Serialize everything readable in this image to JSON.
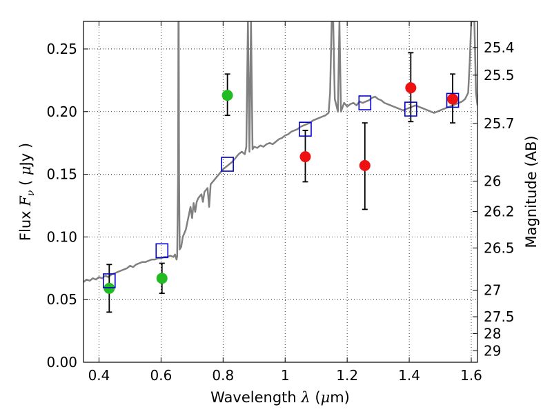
{
  "chart_data": {
    "type": "scatter",
    "xlabel": {
      "prefix": "Wavelength ",
      "symbol": "λ",
      "units_open": " (",
      "unit_mu": "μ",
      "units_close": "m)"
    },
    "ylabel": {
      "prefix": "Flux ",
      "symbol": "F",
      "subscript": "ν",
      "units": " ( ",
      "unit_mu": "μ",
      "units_close": "Jy )"
    },
    "y2label": "Magnitude (AB)",
    "xlim": [
      0.35,
      1.62
    ],
    "ylim": [
      0.0,
      0.272
    ],
    "xticks": [
      {
        "value": 0.4,
        "label": "0.4"
      },
      {
        "value": 0.6,
        "label": "0.6"
      },
      {
        "value": 0.8,
        "label": "0.8"
      },
      {
        "value": 1.0,
        "label": "1"
      },
      {
        "value": 1.2,
        "label": "1.2"
      },
      {
        "value": 1.4,
        "label": "1.4"
      },
      {
        "value": 1.6,
        "label": "1.6"
      }
    ],
    "yticks": [
      {
        "value": 0.0,
        "label": "0.00"
      },
      {
        "value": 0.05,
        "label": "0.05"
      },
      {
        "value": 0.1,
        "label": "0.10"
      },
      {
        "value": 0.15,
        "label": "0.15"
      },
      {
        "value": 0.2,
        "label": "0.20"
      },
      {
        "value": 0.25,
        "label": "0.25"
      }
    ],
    "y2ticks": [
      {
        "value": 25.4,
        "label": "25.4"
      },
      {
        "value": 25.5,
        "label": "25.5"
      },
      {
        "value": 25.7,
        "label": "25.7"
      },
      {
        "value": 26.0,
        "label": "26"
      },
      {
        "value": 26.2,
        "label": "26.2"
      },
      {
        "value": 26.5,
        "label": "26.5"
      },
      {
        "value": 27.0,
        "label": "27"
      },
      {
        "value": 27.5,
        "label": "27.5"
      },
      {
        "value": 28.0,
        "label": "28"
      },
      {
        "value": 29.0,
        "label": "29"
      }
    ],
    "grid": true,
    "colors": {
      "spectrum": "#808080",
      "model": "#0000cc",
      "optical": "#22bb22",
      "nir": "#ee1111",
      "errorbar": "#000000"
    },
    "series": [
      {
        "kind": "spectrum_line",
        "color": "#808080",
        "points": [
          [
            0.35,
            0.064
          ],
          [
            0.36,
            0.066
          ],
          [
            0.37,
            0.065
          ],
          [
            0.38,
            0.067
          ],
          [
            0.39,
            0.066
          ],
          [
            0.4,
            0.068
          ],
          [
            0.41,
            0.067
          ],
          [
            0.42,
            0.069
          ],
          [
            0.43,
            0.068
          ],
          [
            0.44,
            0.07
          ],
          [
            0.45,
            0.071
          ],
          [
            0.46,
            0.072
          ],
          [
            0.47,
            0.073
          ],
          [
            0.48,
            0.074
          ],
          [
            0.49,
            0.075
          ],
          [
            0.5,
            0.077
          ],
          [
            0.51,
            0.076
          ],
          [
            0.52,
            0.078
          ],
          [
            0.53,
            0.079
          ],
          [
            0.54,
            0.08
          ],
          [
            0.55,
            0.08
          ],
          [
            0.56,
            0.081
          ],
          [
            0.57,
            0.082
          ],
          [
            0.58,
            0.082
          ],
          [
            0.59,
            0.083
          ],
          [
            0.6,
            0.083
          ],
          [
            0.61,
            0.084
          ],
          [
            0.62,
            0.084
          ],
          [
            0.63,
            0.085
          ],
          [
            0.64,
            0.084
          ],
          [
            0.645,
            0.086
          ],
          [
            0.65,
            0.082
          ],
          [
            0.652,
            0.085
          ],
          [
            0.655,
            0.15
          ],
          [
            0.656,
            0.272
          ],
          [
            0.657,
            0.272
          ],
          [
            0.658,
            0.15
          ],
          [
            0.66,
            0.09
          ],
          [
            0.665,
            0.092
          ],
          [
            0.67,
            0.1
          ],
          [
            0.68,
            0.106
          ],
          [
            0.685,
            0.112
          ],
          [
            0.69,
            0.118
          ],
          [
            0.695,
            0.124
          ],
          [
            0.7,
            0.115
          ],
          [
            0.705,
            0.127
          ],
          [
            0.71,
            0.12
          ],
          [
            0.715,
            0.128
          ],
          [
            0.72,
            0.131
          ],
          [
            0.73,
            0.134
          ],
          [
            0.735,
            0.128
          ],
          [
            0.74,
            0.136
          ],
          [
            0.75,
            0.139
          ],
          [
            0.755,
            0.124
          ],
          [
            0.76,
            0.142
          ],
          [
            0.77,
            0.145
          ],
          [
            0.78,
            0.148
          ],
          [
            0.79,
            0.151
          ],
          [
            0.8,
            0.154
          ],
          [
            0.81,
            0.156
          ],
          [
            0.82,
            0.158
          ],
          [
            0.83,
            0.16
          ],
          [
            0.84,
            0.163
          ],
          [
            0.85,
            0.166
          ],
          [
            0.86,
            0.168
          ],
          [
            0.87,
            0.166
          ],
          [
            0.875,
            0.172
          ],
          [
            0.88,
            0.272
          ],
          [
            0.885,
            0.168
          ],
          [
            0.89,
            0.272
          ],
          [
            0.895,
            0.17
          ],
          [
            0.9,
            0.172
          ],
          [
            0.91,
            0.171
          ],
          [
            0.92,
            0.173
          ],
          [
            0.93,
            0.172
          ],
          [
            0.94,
            0.174
          ],
          [
            0.95,
            0.175
          ],
          [
            0.96,
            0.174
          ],
          [
            0.97,
            0.176
          ],
          [
            0.98,
            0.178
          ],
          [
            0.99,
            0.179
          ],
          [
            1.0,
            0.181
          ],
          [
            1.01,
            0.182
          ],
          [
            1.02,
            0.184
          ],
          [
            1.03,
            0.185
          ],
          [
            1.04,
            0.186
          ],
          [
            1.05,
            0.188
          ],
          [
            1.06,
            0.189
          ],
          [
            1.07,
            0.19
          ],
          [
            1.08,
            0.191
          ],
          [
            1.09,
            0.193
          ],
          [
            1.1,
            0.194
          ],
          [
            1.11,
            0.195
          ],
          [
            1.12,
            0.196
          ],
          [
            1.13,
            0.197
          ],
          [
            1.14,
            0.199
          ],
          [
            1.145,
            0.215
          ],
          [
            1.15,
            0.272
          ],
          [
            1.155,
            0.272
          ],
          [
            1.16,
            0.21
          ],
          [
            1.17,
            0.2
          ],
          [
            1.175,
            0.272
          ],
          [
            1.18,
            0.2
          ],
          [
            1.19,
            0.207
          ],
          [
            1.2,
            0.204
          ],
          [
            1.21,
            0.206
          ],
          [
            1.22,
            0.207
          ],
          [
            1.23,
            0.205
          ],
          [
            1.24,
            0.208
          ],
          [
            1.25,
            0.207
          ],
          [
            1.26,
            0.208
          ],
          [
            1.27,
            0.209
          ],
          [
            1.28,
            0.211
          ],
          [
            1.29,
            0.212
          ],
          [
            1.3,
            0.21
          ],
          [
            1.31,
            0.209
          ],
          [
            1.32,
            0.207
          ],
          [
            1.33,
            0.206
          ],
          [
            1.34,
            0.205
          ],
          [
            1.35,
            0.204
          ],
          [
            1.36,
            0.203
          ],
          [
            1.37,
            0.202
          ],
          [
            1.38,
            0.201
          ],
          [
            1.39,
            0.202
          ],
          [
            1.4,
            0.203
          ],
          [
            1.41,
            0.204
          ],
          [
            1.42,
            0.205
          ],
          [
            1.43,
            0.204
          ],
          [
            1.44,
            0.203
          ],
          [
            1.45,
            0.202
          ],
          [
            1.46,
            0.201
          ],
          [
            1.47,
            0.2
          ],
          [
            1.48,
            0.199
          ],
          [
            1.49,
            0.2
          ],
          [
            1.5,
            0.201
          ],
          [
            1.51,
            0.202
          ],
          [
            1.52,
            0.203
          ],
          [
            1.53,
            0.204
          ],
          [
            1.54,
            0.205
          ],
          [
            1.55,
            0.206
          ],
          [
            1.56,
            0.207
          ],
          [
            1.57,
            0.208
          ],
          [
            1.58,
            0.21
          ],
          [
            1.59,
            0.215
          ],
          [
            1.595,
            0.24
          ],
          [
            1.6,
            0.272
          ],
          [
            1.61,
            0.272
          ],
          [
            1.615,
            0.215
          ],
          [
            1.62,
            0.205
          ]
        ]
      },
      {
        "kind": "model_squares",
        "color": "#0000cc",
        "points": [
          [
            0.433,
            0.065
          ],
          [
            0.603,
            0.089
          ],
          [
            0.814,
            0.158
          ],
          [
            1.065,
            0.186
          ],
          [
            1.257,
            0.207
          ],
          [
            1.405,
            0.202
          ],
          [
            1.54,
            0.209
          ]
        ]
      },
      {
        "kind": "observed_points",
        "color": "#22bb22",
        "points": [
          {
            "x": 0.433,
            "y": 0.059,
            "ylow": 0.04,
            "yhigh": 0.078
          },
          {
            "x": 0.603,
            "y": 0.067,
            "ylow": 0.055,
            "yhigh": 0.079
          },
          {
            "x": 0.814,
            "y": 0.213,
            "ylow": 0.197,
            "yhigh": 0.23
          }
        ]
      },
      {
        "kind": "observed_points",
        "color": "#ee1111",
        "points": [
          {
            "x": 1.065,
            "y": 0.164,
            "ylow": 0.144,
            "yhigh": 0.185
          },
          {
            "x": 1.257,
            "y": 0.157,
            "ylow": 0.122,
            "yhigh": 0.191
          },
          {
            "x": 1.405,
            "y": 0.219,
            "ylow": 0.192,
            "yhigh": 0.247
          },
          {
            "x": 1.54,
            "y": 0.21,
            "ylow": 0.191,
            "yhigh": 0.23
          }
        ]
      }
    ]
  }
}
